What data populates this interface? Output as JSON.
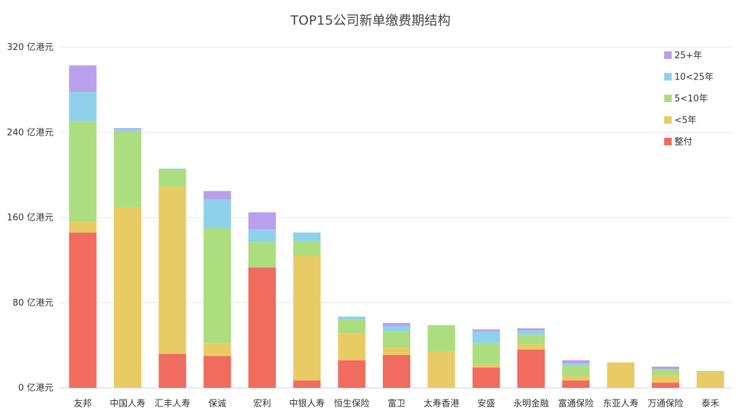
{
  "chart_data": {
    "type": "bar",
    "stacked": true,
    "title": "TOP15公司新单缴费期结构",
    "xlabel": "",
    "ylabel": "",
    "ylim": [
      0,
      320
    ],
    "y_ticks": [
      0,
      80,
      160,
      240,
      320
    ],
    "y_tick_labels": [
      "0 亿港元",
      "80 亿港元",
      "160 亿港元",
      "240 亿港元",
      "320 亿港元"
    ],
    "grid": true,
    "legend_position": "top-right",
    "categories": [
      "友邦",
      "中国人寿",
      "汇丰人寿",
      "保诚",
      "宏利",
      "中银人寿",
      "恒生保险",
      "富卫",
      "太寿香港",
      "安盛",
      "永明金融",
      "富通保险",
      "东亚人寿",
      "万通保险",
      "泰禾"
    ],
    "series": [
      {
        "name": "整付",
        "color": "#f06c5e",
        "values": [
          146,
          0,
          32,
          30,
          113,
          7,
          26,
          31,
          0,
          19,
          36,
          7,
          0,
          5,
          0
        ]
      },
      {
        "name": "<5年",
        "color": "#e9cb66",
        "values": [
          10,
          170,
          157,
          12,
          0,
          117,
          25,
          7,
          34,
          3,
          5,
          4,
          24,
          7,
          15
        ]
      },
      {
        "name": "5<10年",
        "color": "#acdd7e",
        "values": [
          94,
          71,
          16,
          108,
          24,
          14,
          13,
          15,
          25,
          20,
          9,
          10,
          0,
          5,
          1
        ]
      },
      {
        "name": "10<25年",
        "color": "#8fd1ea",
        "values": [
          28,
          2,
          1,
          27,
          12,
          8,
          3,
          5,
          0,
          11,
          4,
          2,
          0,
          1,
          0
        ]
      },
      {
        "name": "25+年",
        "color": "#b8a0ea",
        "values": [
          25,
          1,
          0,
          8,
          16,
          0,
          0,
          3,
          0,
          2,
          2,
          3,
          0,
          2,
          0
        ]
      }
    ],
    "legend_order": [
      "25+年",
      "10<25年",
      "5<10年",
      "<5年",
      "整付"
    ]
  }
}
